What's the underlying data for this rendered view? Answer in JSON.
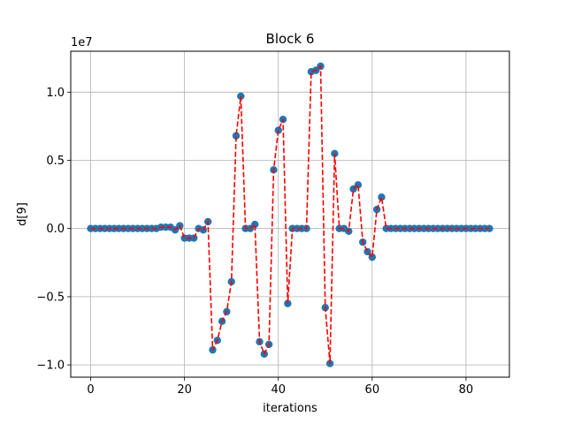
{
  "chart_data": {
    "type": "scatter",
    "title": "Block 6",
    "xlabel": "iterations",
    "ylabel": "d[9]",
    "offset_text": "1e7",
    "xlim": [
      -4.25,
      89.25
    ],
    "ylim": [
      -1.09,
      1.3
    ],
    "xticks": [
      0,
      20,
      40,
      60,
      80
    ],
    "yticks": [
      -1.0,
      -0.5,
      0.0,
      0.5,
      1.0
    ],
    "ytick_labels": [
      "−1.0",
      "−0.5",
      "0.0",
      "0.5",
      "1.0"
    ],
    "grid": true,
    "colors": {
      "points": "#1f77b4",
      "line": "#ff0000",
      "grid": "#b0b0b0"
    },
    "series": [
      {
        "marker": "circle",
        "line_style": "dashed",
        "x": [
          0,
          1,
          2,
          3,
          4,
          5,
          6,
          7,
          8,
          9,
          10,
          11,
          12,
          13,
          14,
          15,
          16,
          17,
          18,
          19,
          20,
          21,
          22,
          23,
          24,
          25,
          26,
          27,
          28,
          29,
          30,
          31,
          32,
          33,
          34,
          35,
          36,
          37,
          38,
          39,
          40,
          41,
          42,
          43,
          44,
          45,
          46,
          47,
          48,
          49,
          50,
          51,
          52,
          53,
          54,
          55,
          56,
          57,
          58,
          59,
          60,
          61,
          62,
          63,
          64,
          65,
          66,
          67,
          68,
          69,
          70,
          71,
          72,
          73,
          74,
          75,
          76,
          77,
          78,
          79,
          80,
          81,
          82,
          83,
          84,
          85
        ],
        "y": [
          0,
          0,
          0,
          0,
          0,
          0,
          0,
          0,
          0,
          0,
          0,
          0,
          0,
          0,
          0,
          0.01,
          0.01,
          0.01,
          -0.01,
          0.02,
          -0.07,
          -0.07,
          -0.07,
          0.0,
          -0.01,
          0.05,
          -0.89,
          -0.82,
          -0.68,
          -0.61,
          -0.39,
          0.68,
          0.97,
          0.0,
          0.0,
          0.03,
          -0.83,
          -0.92,
          -0.85,
          0.43,
          0.72,
          0.8,
          -0.55,
          0.0,
          0.0,
          0.0,
          0.0,
          1.15,
          1.16,
          1.19,
          -0.58,
          -0.99,
          0.55,
          0.0,
          0.0,
          -0.02,
          0.29,
          0.32,
          -0.1,
          -0.17,
          -0.21,
          0.14,
          0.23,
          0,
          0,
          0,
          0,
          0,
          0,
          0,
          0,
          0,
          0,
          0,
          0,
          0,
          0,
          0,
          0,
          0,
          0,
          0,
          0,
          0,
          0,
          0
        ]
      }
    ]
  }
}
